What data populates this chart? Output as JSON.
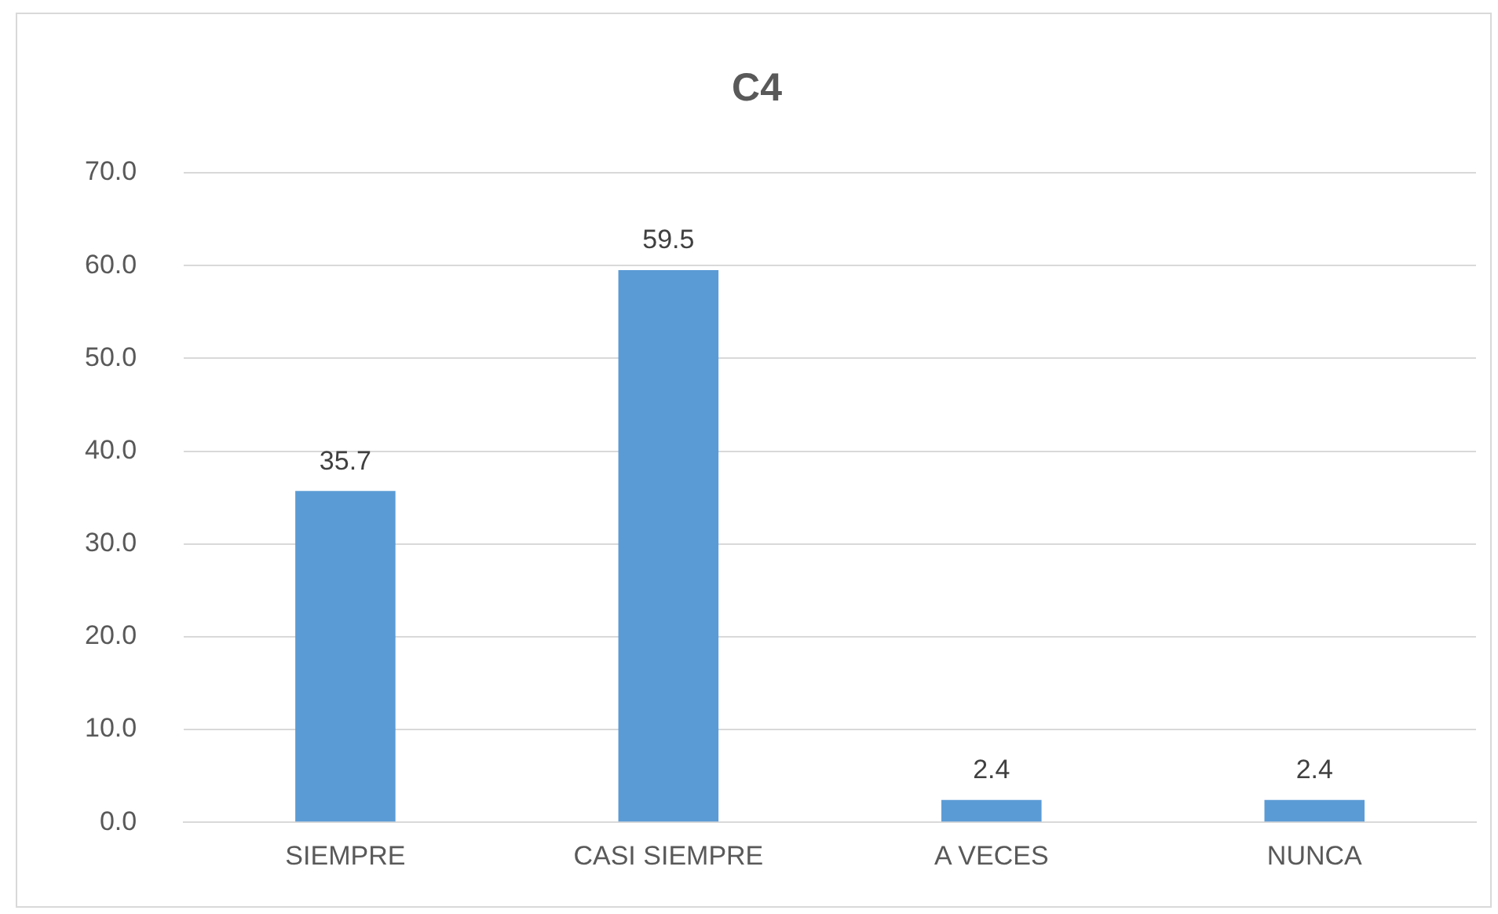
{
  "chart_data": {
    "type": "bar",
    "title": "C4",
    "categories": [
      "SIEMPRE",
      "CASI SIEMPRE",
      "A VECES",
      "NUNCA"
    ],
    "values": [
      35.7,
      59.5,
      2.4,
      2.4
    ],
    "color": "#5b9bd5",
    "ylim": [
      0,
      70
    ],
    "yticks": [
      {
        "value": 0,
        "label": "0.0"
      },
      {
        "value": 10,
        "label": "10.0"
      },
      {
        "value": 20,
        "label": "20.0"
      },
      {
        "value": 30,
        "label": "30.0"
      },
      {
        "value": 40,
        "label": "40.0"
      },
      {
        "value": 50,
        "label": "50.0"
      },
      {
        "value": 60,
        "label": "60.0"
      },
      {
        "value": 70,
        "label": "70.0"
      }
    ],
    "grid": "y",
    "data_labels": true,
    "legend": false
  }
}
